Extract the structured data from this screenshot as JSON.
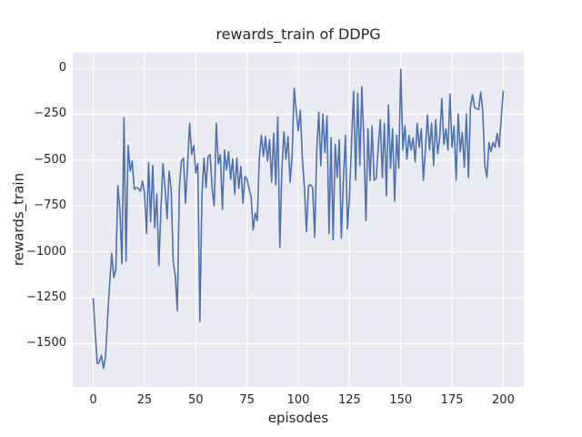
{
  "chart_data": {
    "type": "line",
    "title": "rewards_train of DDPG",
    "xlabel": "episodes",
    "ylabel": "rewards_train",
    "grid": true,
    "legend_position": "none",
    "xlim": [
      -10,
      210
    ],
    "ylim": [
      -1736,
      84
    ],
    "xticks": [
      {
        "value": 0,
        "label": "0"
      },
      {
        "value": 25,
        "label": "25"
      },
      {
        "value": 50,
        "label": "50"
      },
      {
        "value": 75,
        "label": "75"
      },
      {
        "value": 100,
        "label": "100"
      },
      {
        "value": 125,
        "label": "125"
      },
      {
        "value": 150,
        "label": "150"
      },
      {
        "value": 175,
        "label": "175"
      },
      {
        "value": 200,
        "label": "200"
      }
    ],
    "yticks": [
      {
        "value": 0,
        "label": "0"
      },
      {
        "value": -250,
        "label": "−250"
      },
      {
        "value": -500,
        "label": "−500"
      },
      {
        "value": -750,
        "label": "−750"
      },
      {
        "value": -1000,
        "label": "−1000"
      },
      {
        "value": -1250,
        "label": "−1250"
      },
      {
        "value": -1500,
        "label": "−1500"
      }
    ],
    "x_start": 0,
    "x_step": 1,
    "series": [
      {
        "name": "rewards_train",
        "values": [
          -1255,
          -1450,
          -1610,
          -1600,
          -1565,
          -1635,
          -1570,
          -1360,
          -1175,
          -1010,
          -1140,
          -1100,
          -640,
          -770,
          -1065,
          -270,
          -1050,
          -420,
          -560,
          -505,
          -660,
          -650,
          -655,
          -670,
          -615,
          -680,
          -900,
          -515,
          -835,
          -530,
          -870,
          -685,
          -1075,
          -770,
          -520,
          -650,
          -820,
          -560,
          -660,
          -1050,
          -1130,
          -1320,
          -655,
          -505,
          -490,
          -735,
          -530,
          -300,
          -470,
          -420,
          -570,
          -520,
          -1380,
          -700,
          -490,
          -650,
          -480,
          -470,
          -655,
          -750,
          -300,
          -520,
          -470,
          -770,
          -445,
          -555,
          -455,
          -605,
          -495,
          -685,
          -490,
          -655,
          -535,
          -735,
          -590,
          -605,
          -655,
          -700,
          -880,
          -790,
          -830,
          -490,
          -365,
          -480,
          -372,
          -505,
          -390,
          -620,
          -355,
          -635,
          -265,
          -975,
          -555,
          -347,
          -496,
          -372,
          -620,
          -480,
          -110,
          -230,
          -340,
          -230,
          -490,
          -650,
          -890,
          -640,
          -635,
          -650,
          -920,
          -450,
          -240,
          -530,
          -250,
          -460,
          -260,
          -900,
          -380,
          -935,
          -415,
          -595,
          -390,
          -925,
          -610,
          -365,
          -875,
          -695,
          -400,
          -125,
          -610,
          -135,
          -530,
          -100,
          -400,
          -830,
          -330,
          -610,
          -315,
          -610,
          -600,
          -430,
          -280,
          -595,
          -300,
          -695,
          -200,
          -545,
          -330,
          -725,
          -365,
          -545,
          -5,
          -445,
          -315,
          -495,
          -365,
          -445,
          -380,
          -510,
          -300,
          -430,
          -330,
          -610,
          -445,
          -255,
          -445,
          -300,
          -530,
          -280,
          -465,
          -380,
          -165,
          -415,
          -330,
          -445,
          -140,
          -430,
          -315,
          -610,
          -250,
          -455,
          -350,
          -540,
          -250,
          -595,
          -210,
          -145,
          -215,
          -220,
          -225,
          -130,
          -235,
          -530,
          -595,
          -405,
          -455,
          -405,
          -430,
          -355,
          -430,
          -270,
          -125
        ]
      }
    ],
    "style": {
      "fig_bg": "#ffffff",
      "axes_bg": "#eaeaf2",
      "grid_color": "#ffffff",
      "line_color": "#4c72b0",
      "text_color": "#262626"
    }
  }
}
